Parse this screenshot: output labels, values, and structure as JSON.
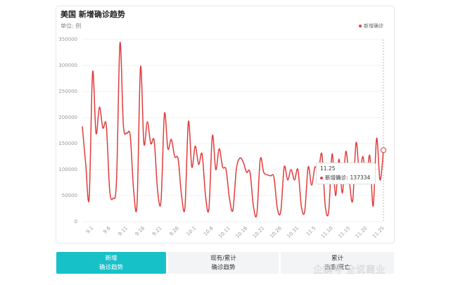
{
  "header": {
    "title": "美国 新增确诊趋势",
    "unit": "单位: 例"
  },
  "chart_data": {
    "type": "line",
    "categories": [
      null,
      null,
      null,
      "9.1",
      null,
      null,
      null,
      null,
      "9.6",
      null,
      null,
      null,
      null,
      "9.11",
      null,
      null,
      null,
      null,
      "9.16",
      null,
      null,
      null,
      null,
      "9.21",
      null,
      null,
      null,
      null,
      "9.26",
      null,
      null,
      null,
      null,
      "10.1",
      null,
      null,
      null,
      null,
      "10.6",
      null,
      null,
      null,
      null,
      "10.11",
      null,
      null,
      null,
      null,
      "10.16",
      null,
      null,
      null,
      null,
      "10.21",
      null,
      null,
      null,
      null,
      "10.26",
      null,
      null,
      null,
      null,
      "10.31",
      null,
      null,
      null,
      null,
      "11.5",
      null,
      null,
      null,
      null,
      "11.10",
      null,
      null,
      null,
      null,
      "11.15",
      null,
      null,
      null,
      null,
      "11.20",
      null,
      null,
      null,
      null,
      "11.25"
    ],
    "series": [
      {
        "name": "新增确诊",
        "color": "#e03c3c",
        "values": [
          183000,
          110000,
          45000,
          287000,
          170000,
          220000,
          180000,
          185000,
          60000,
          45000,
          80000,
          343000,
          185000,
          170000,
          165000,
          60000,
          35000,
          297000,
          150000,
          192000,
          150000,
          155000,
          60000,
          40000,
          207000,
          140000,
          158000,
          125000,
          120000,
          50000,
          28000,
          192000,
          105000,
          145000,
          110000,
          130000,
          50000,
          25000,
          165000,
          100000,
          140000,
          105000,
          100000,
          45000,
          22000,
          100000,
          122000,
          115000,
          95000,
          95000,
          30000,
          15000,
          120000,
          95000,
          90000,
          88000,
          85000,
          25000,
          20000,
          105000,
          80000,
          100000,
          80000,
          100000,
          30000,
          20000,
          105000,
          70000,
          105000,
          95000,
          130000,
          30000,
          20000,
          130000,
          50000,
          120000,
          55000,
          135000,
          80000,
          40000,
          152000,
          90000,
          125000,
          80000,
          127000,
          30000,
          160000,
          80000,
          137334
        ]
      }
    ],
    "ylim": [
      0,
      350000
    ],
    "yticks": [
      0,
      50000,
      100000,
      150000,
      200000,
      250000,
      300000,
      350000
    ],
    "grid": true,
    "legend": "top-right"
  },
  "tooltip": {
    "label": "新增确诊:"
  },
  "tabs": [
    {
      "lines": [
        "新增",
        "确诊趋势"
      ],
      "active": true
    },
    {
      "lines": [
        "现有/累计",
        "确诊趋势"
      ],
      "active": false
    },
    {
      "lines": [
        "累计",
        "治愈/死亡"
      ],
      "active": false
    }
  ],
  "watermark": "企鹅号 全说商业"
}
